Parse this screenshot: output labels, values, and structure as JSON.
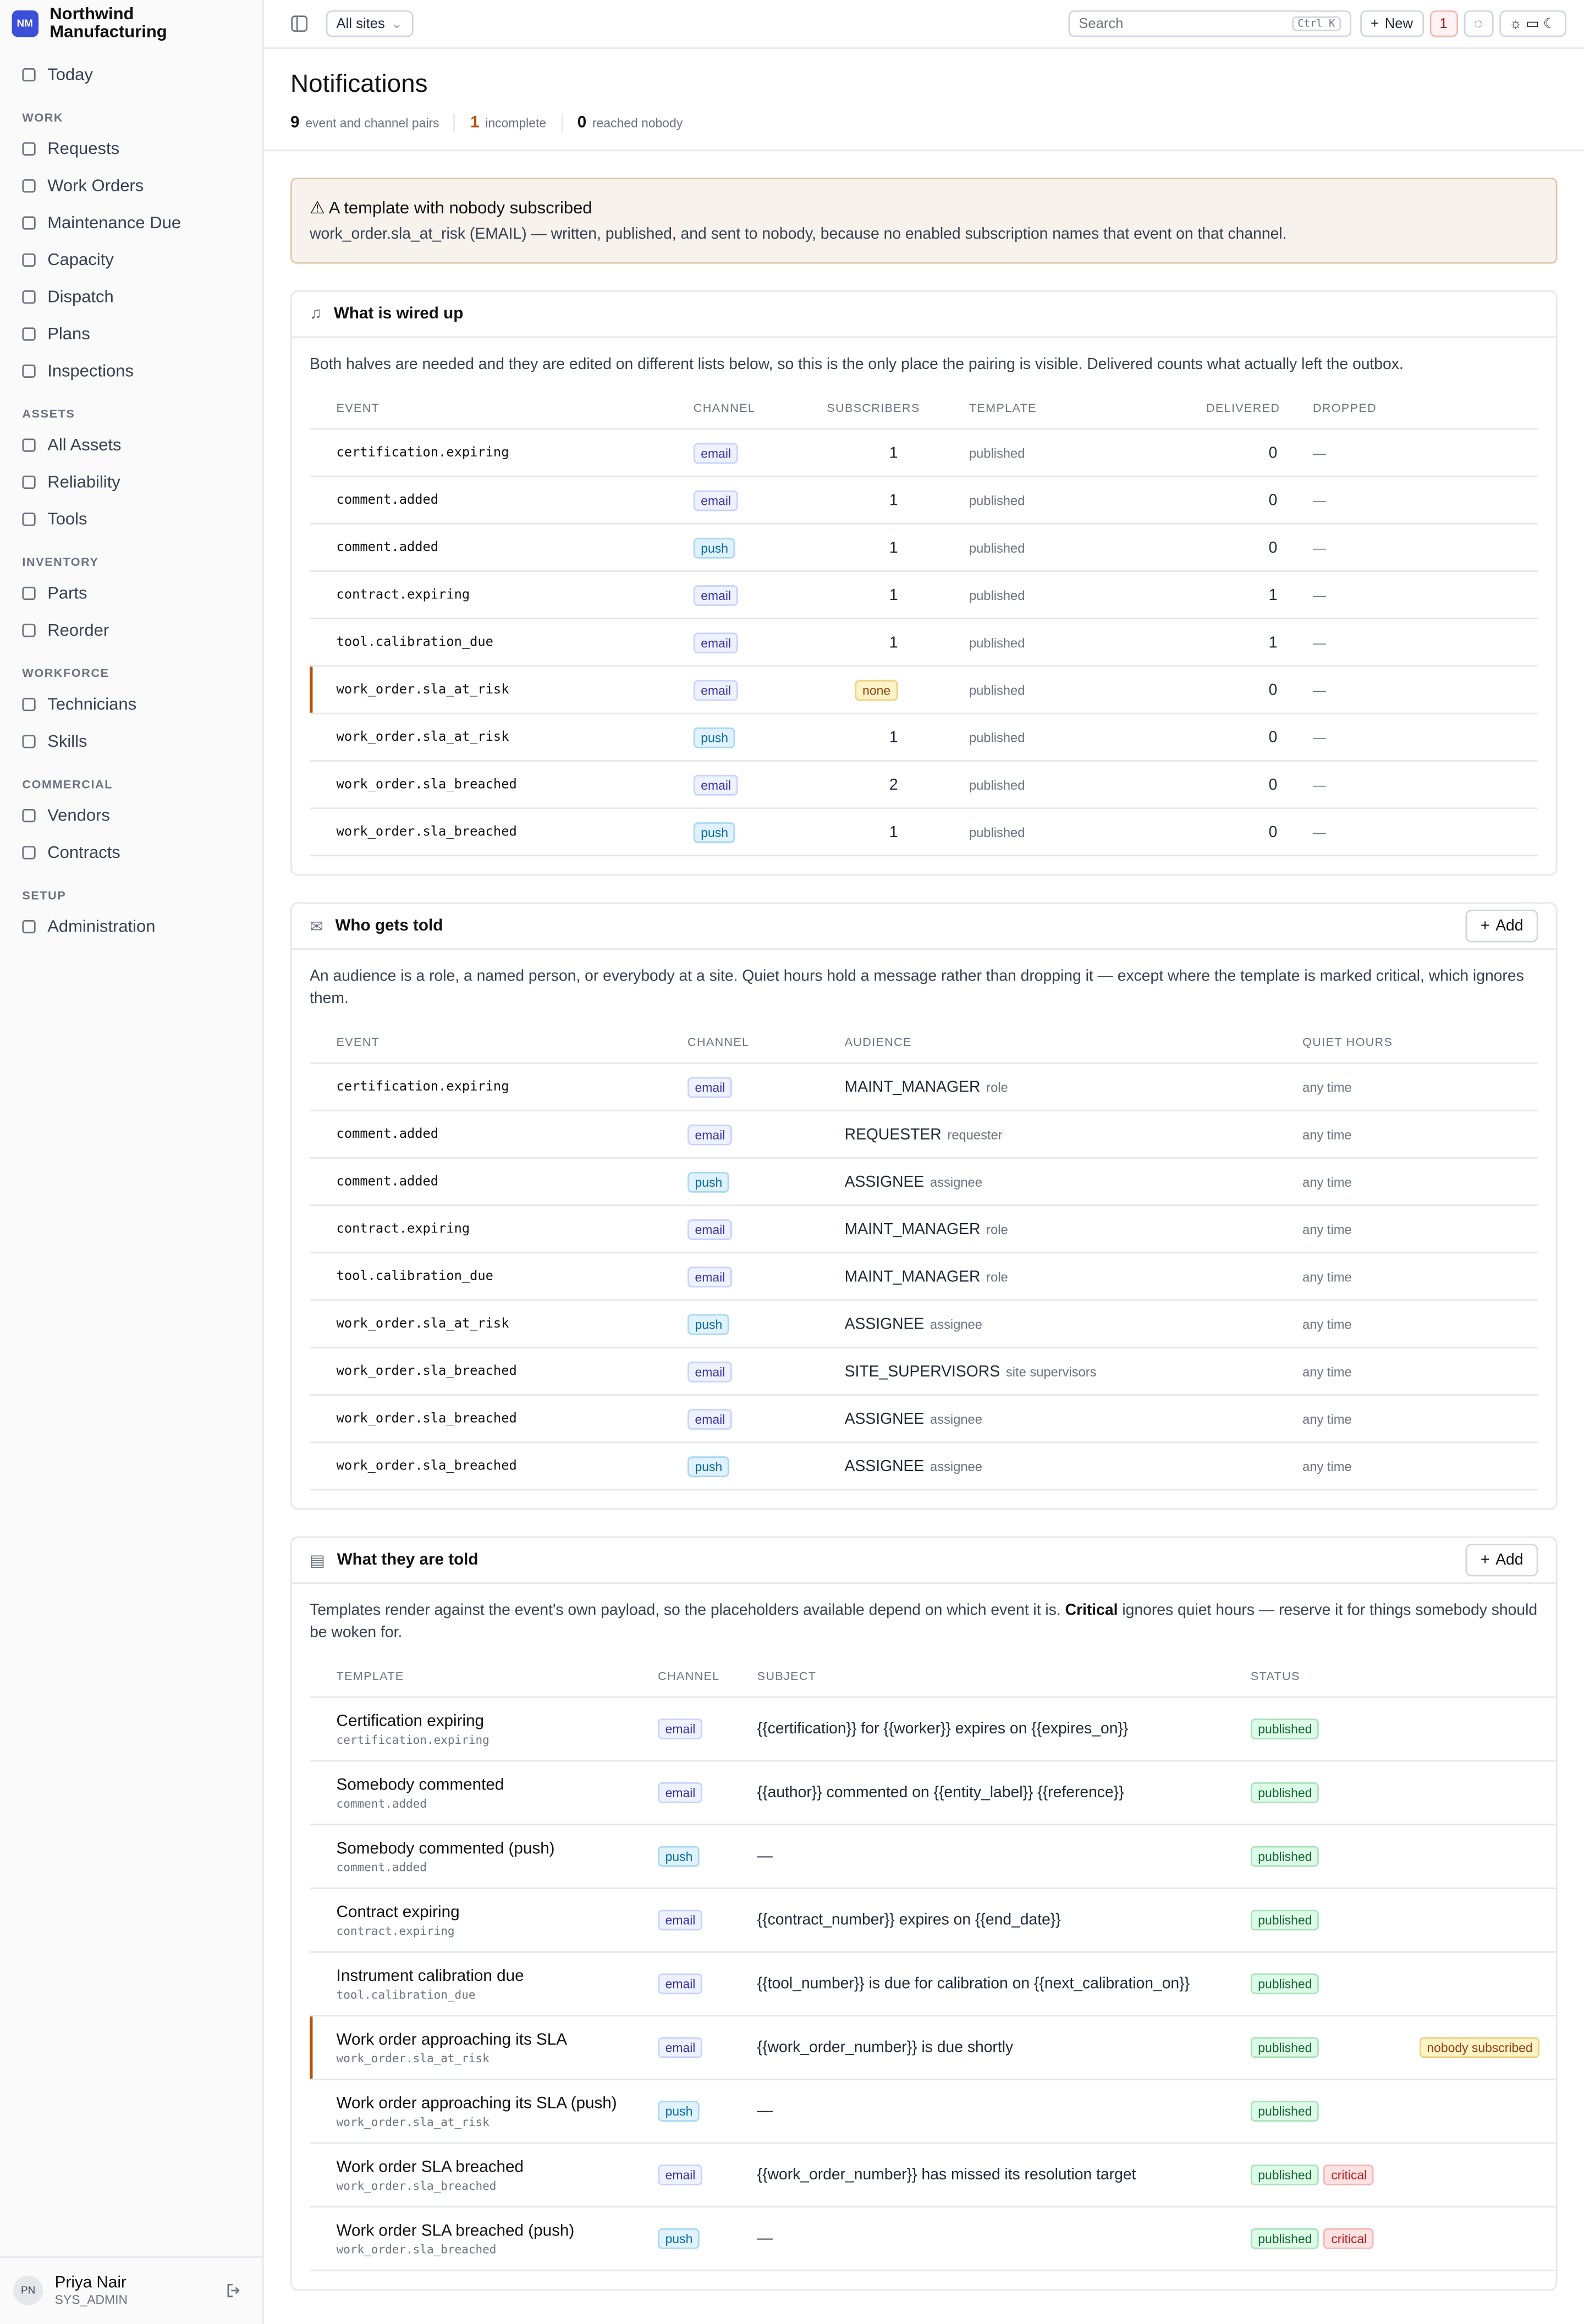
{
  "brand": {
    "initials": "NM",
    "name": "Northwind Manufacturing"
  },
  "nav": [
    {
      "items": [
        "Today"
      ]
    },
    {
      "title": "WORK",
      "items": [
        "Requests",
        "Work Orders",
        "Maintenance Due",
        "Capacity",
        "Dispatch",
        "Plans",
        "Inspections"
      ]
    },
    {
      "title": "ASSETS",
      "items": [
        "All Assets",
        "Reliability",
        "Tools"
      ]
    },
    {
      "title": "INVENTORY",
      "items": [
        "Parts",
        "Reorder"
      ]
    },
    {
      "title": "WORKFORCE",
      "items": [
        "Technicians",
        "Skills"
      ]
    },
    {
      "title": "COMMERCIAL",
      "items": [
        "Vendors",
        "Contracts"
      ]
    },
    {
      "title": "SETUP",
      "items": [
        "Administration"
      ]
    }
  ],
  "user": {
    "initials": "PN",
    "name": "Priya Nair",
    "role": "SYS_ADMIN"
  },
  "topbar": {
    "site": "All sites",
    "search": "Search",
    "shortcut": "Ctrl K",
    "new": "New",
    "alerts": 1
  },
  "page": {
    "title": "Notifications",
    "stats": [
      {
        "value": 9,
        "label": "event and channel pairs"
      },
      {
        "value": 1,
        "label": "incomplete"
      },
      {
        "value": 0,
        "label": "reached nobody"
      }
    ]
  },
  "warning": {
    "title": "A template with nobody subscribed",
    "text": "work_order.sla_at_risk (EMAIL) — written, published, and sent to nobody, because no enabled subscription names that event on that channel."
  },
  "wired": {
    "title": "What is wired up",
    "description": "Both halves are needed and they are edited on different lists below, so this is the only place the pairing is visible. Delivered counts what actually left the outbox.",
    "columns": [
      "EVENT",
      "CHANNEL",
      "SUBSCRIBERS",
      "TEMPLATE",
      "DELIVERED",
      "DROPPED"
    ],
    "rows": [
      [
        "certification.expiring",
        "email",
        1,
        "published",
        0,
        "—"
      ],
      [
        "comment.added",
        "email",
        1,
        "published",
        0,
        "—"
      ],
      [
        "comment.added",
        "push",
        1,
        "published",
        0,
        "—"
      ],
      [
        "contract.expiring",
        "email",
        1,
        "published",
        1,
        "—"
      ],
      [
        "tool.calibration_due",
        "email",
        1,
        "published",
        1,
        "—"
      ],
      [
        "work_order.sla_at_risk",
        "email",
        "none",
        "published",
        0,
        "—"
      ],
      [
        "work_order.sla_at_risk",
        "push",
        1,
        "published",
        0,
        "—"
      ],
      [
        "work_order.sla_breached",
        "email",
        2,
        "published",
        0,
        "—"
      ],
      [
        "work_order.sla_breached",
        "push",
        1,
        "published",
        0,
        "—"
      ]
    ]
  },
  "audience": {
    "title": "Who gets told",
    "add": "Add",
    "description": "An audience is a role, a named person, or everybody at a site. Quiet hours hold a message rather than dropping it — except where the template is marked critical, which ignores them.",
    "columns": [
      "EVENT",
      "CHANNEL",
      "AUDIENCE",
      "QUIET HOURS"
    ],
    "rows": [
      [
        "certification.expiring",
        "email",
        "MAINT_MANAGER",
        "role",
        "any time"
      ],
      [
        "comment.added",
        "email",
        "REQUESTER",
        "requester",
        "any time"
      ],
      [
        "comment.added",
        "push",
        "ASSIGNEE",
        "assignee",
        "any time"
      ],
      [
        "contract.expiring",
        "email",
        "MAINT_MANAGER",
        "role",
        "any time"
      ],
      [
        "tool.calibration_due",
        "email",
        "MAINT_MANAGER",
        "role",
        "any time"
      ],
      [
        "work_order.sla_at_risk",
        "push",
        "ASSIGNEE",
        "assignee",
        "any time"
      ],
      [
        "work_order.sla_breached",
        "email",
        "SITE_SUPERVISORS",
        "site supervisors",
        "any time"
      ],
      [
        "work_order.sla_breached",
        "email",
        "ASSIGNEE",
        "assignee",
        "any time"
      ],
      [
        "work_order.sla_breached",
        "push",
        "ASSIGNEE",
        "assignee",
        "any time"
      ]
    ]
  },
  "templates": {
    "title": "What they are told",
    "add": "Add",
    "description": [
      "Templates render against the event's own payload, so the placeholders available depend on which event it is. ",
      "Critical",
      " ignores quiet hours — reserve it for things somebody should be woken for."
    ],
    "columns": [
      "TEMPLATE",
      "CHANNEL",
      "SUBJECT",
      "STATUS"
    ],
    "rows": [
      {
        "name": "Certification expiring",
        "event": "certification.expiring",
        "channel": "email",
        "subject": "{{certification}} for {{worker}} expires on {{expires_on}}",
        "status": [
          "published"
        ]
      },
      {
        "name": "Somebody commented",
        "event": "comment.added",
        "channel": "email",
        "subject": "{{author}} commented on {{entity_label}} {{reference}}",
        "status": [
          "published"
        ]
      },
      {
        "name": "Somebody commented (push)",
        "event": "comment.added",
        "channel": "push",
        "subject": "—",
        "status": [
          "published"
        ]
      },
      {
        "name": "Contract expiring",
        "event": "contract.expiring",
        "channel": "email",
        "subject": "{{contract_number}} expires on {{end_date}}",
        "status": [
          "published"
        ]
      },
      {
        "name": "Instrument calibration due",
        "event": "tool.calibration_due",
        "channel": "email",
        "subject": "{{tool_number}} is due for calibration on {{next_calibration_on}}",
        "status": [
          "published"
        ]
      },
      {
        "name": "Work order approaching its SLA",
        "event": "work_order.sla_at_risk",
        "channel": "email",
        "subject": "{{work_order_number}} is due shortly",
        "status": [
          "published"
        ],
        "note": "nobody subscribed"
      },
      {
        "name": "Work order approaching its SLA (push)",
        "event": "work_order.sla_at_risk",
        "channel": "push",
        "subject": "—",
        "status": [
          "published"
        ]
      },
      {
        "name": "Work order SLA breached",
        "event": "work_order.sla_breached",
        "channel": "email",
        "subject": "{{work_order_number}} has missed its resolution target",
        "status": [
          "published",
          "critical"
        ]
      },
      {
        "name": "Work order SLA breached (push)",
        "event": "work_order.sla_breached",
        "channel": "push",
        "subject": "—",
        "status": [
          "published",
          "critical"
        ]
      }
    ]
  }
}
